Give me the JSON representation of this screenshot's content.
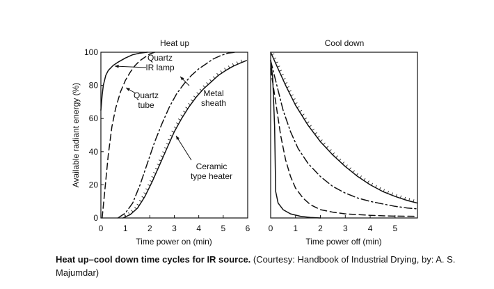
{
  "chart_data": [
    {
      "type": "line",
      "title": "Heat up",
      "xlabel": "Time power on (min)",
      "ylabel": "Available radiant energy (%)",
      "xlim": [
        0,
        6
      ],
      "ylim": [
        0,
        100
      ],
      "xticks": [
        "0",
        "1",
        "2",
        "3",
        "4",
        "5",
        "6"
      ],
      "yticks": [
        "0",
        "20",
        "40",
        "60",
        "80",
        "100"
      ],
      "grid": false,
      "series": [
        {
          "name": "Quartz IR lamp",
          "style": "solid",
          "x": [
            0,
            0.05,
            0.1,
            0.2,
            0.3,
            0.5,
            0.7,
            1.0,
            1.3,
            1.6,
            1.9
          ],
          "y": [
            65,
            74,
            80,
            86,
            89,
            92,
            94,
            96.5,
            98.5,
            99.5,
            100
          ]
        },
        {
          "name": "Quartz tube",
          "style": "dashed",
          "x": [
            0.05,
            0.15,
            0.3,
            0.45,
            0.6,
            0.8,
            1.0,
            1.2,
            1.4,
            1.6,
            1.8,
            2.0,
            2.2
          ],
          "y": [
            0,
            15,
            38,
            55,
            66,
            76,
            83,
            88,
            92,
            95,
            97,
            99,
            100
          ]
        },
        {
          "name": "Metal sheath",
          "style": "dashdot",
          "x": [
            0.7,
            1.0,
            1.3,
            1.6,
            1.9,
            2.2,
            2.5,
            2.8,
            3.1,
            3.4,
            3.7,
            4.0,
            4.3,
            4.6,
            4.9,
            5.2,
            5.5
          ],
          "y": [
            0,
            3,
            9,
            20,
            33,
            46,
            57,
            67,
            75,
            81,
            86,
            90,
            93,
            96,
            98,
            99.5,
            100
          ]
        },
        {
          "name": "Ceramic type heater",
          "style": "ticked",
          "x": [
            0.9,
            1.2,
            1.5,
            1.8,
            2.1,
            2.4,
            2.7,
            3.0,
            3.3,
            3.6,
            3.9,
            4.2,
            4.5,
            4.8,
            5.1,
            5.4,
            5.7,
            5.95
          ],
          "y": [
            0,
            2,
            6,
            13,
            22,
            32,
            42,
            52,
            60,
            67,
            73,
            78,
            82,
            86,
            89,
            91.5,
            93.5,
            95
          ]
        }
      ],
      "annotations": [
        {
          "text": [
            "Quartz",
            "IR lamp"
          ],
          "series": "Quartz IR lamp"
        },
        {
          "text": [
            "Quartz",
            "tube"
          ],
          "series": "Quartz tube"
        },
        {
          "text": [
            "Metal",
            "sheath"
          ],
          "series": "Metal sheath"
        },
        {
          "text": [
            "Ceramic",
            "type heater"
          ],
          "series": "Ceramic type heater"
        }
      ]
    },
    {
      "type": "line",
      "title": "Cool down",
      "xlabel": "Time power off (min)",
      "xlim": [
        0,
        5.9
      ],
      "ylim": [
        0,
        100
      ],
      "xticks": [
        "0",
        "1",
        "2",
        "3",
        "4",
        "5"
      ],
      "grid": false,
      "series": [
        {
          "name": "Quartz IR lamp",
          "style": "solid",
          "x": [
            0,
            0.08,
            0.16,
            0.2,
            0.3,
            0.5,
            0.8,
            1.2,
            1.6,
            2.0
          ],
          "y": [
            95,
            85,
            55,
            16,
            9,
            5,
            2.5,
            1,
            0.3,
            0
          ]
        },
        {
          "name": "Quartz tube",
          "style": "dashed",
          "x": [
            0,
            0.2,
            0.4,
            0.6,
            0.8,
            1.0,
            1.3,
            1.6,
            2.0,
            2.5,
            3.0,
            3.5,
            4.0,
            4.5,
            5.0,
            5.9
          ],
          "y": [
            90,
            70,
            50,
            35,
            25,
            18,
            12,
            8,
            5,
            3.5,
            2.5,
            2,
            1.6,
            1.3,
            1.1,
            1
          ]
        },
        {
          "name": "Metal sheath",
          "style": "dashdot",
          "x": [
            0,
            0.25,
            0.5,
            0.8,
            1.1,
            1.5,
            2.0,
            2.5,
            3.0,
            3.5,
            4.0,
            4.5,
            5.0,
            5.5,
            5.9
          ],
          "y": [
            95,
            80,
            65,
            52,
            42,
            33,
            25,
            19,
            15,
            12,
            10,
            8.5,
            7,
            6,
            5.5
          ]
        },
        {
          "name": "Ceramic type heater",
          "style": "ticked",
          "x": [
            0,
            0.3,
            0.6,
            1.0,
            1.5,
            2.0,
            2.5,
            3.0,
            3.5,
            4.0,
            4.5,
            5.0,
            5.5,
            5.9
          ],
          "y": [
            100,
            90,
            80,
            68,
            56,
            46,
            38,
            31,
            25,
            20,
            16,
            13,
            10.5,
            9
          ]
        }
      ]
    }
  ],
  "caption": {
    "bold": "Heat up–cool down time cycles for IR source.",
    "rest": " (Courtesy: Handbook of Industrial Drying, by: A. S. Majumdar)"
  }
}
